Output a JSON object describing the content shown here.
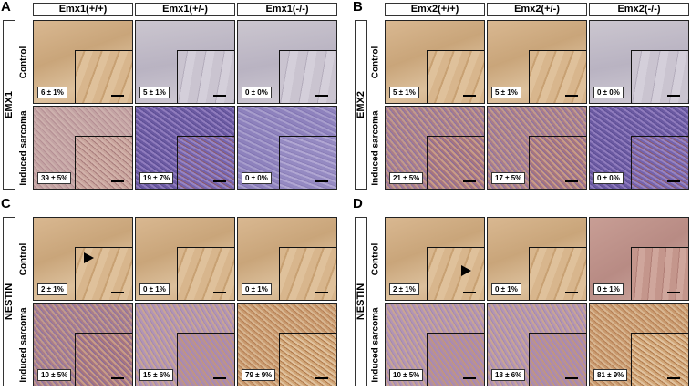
{
  "panels": {
    "A": {
      "label": "A",
      "marker": "EMX1",
      "columns": [
        "Emx1(+/+)",
        "Emx1(+/-)",
        "Emx1(-/-)"
      ],
      "rows": [
        "Control",
        "Induced sarcoma"
      ],
      "cells": [
        [
          "6 ± 1%",
          "5 ± 1%",
          "0 ± 0%"
        ],
        [
          "39 ± 5%",
          "19 ± 7%",
          "0 ± 0%"
        ]
      ]
    },
    "B": {
      "label": "B",
      "marker": "EMX2",
      "columns": [
        "Emx2(+/+)",
        "Emx2(+/-)",
        "Emx2(-/-)"
      ],
      "rows": [
        "Control",
        "Induced sarcoma"
      ],
      "cells": [
        [
          "5 ± 1%",
          "5 ± 1%",
          "0 ± 0%"
        ],
        [
          "21 ± 5%",
          "17 ± 5%",
          "0 ± 0%"
        ]
      ]
    },
    "C": {
      "label": "C",
      "marker": "NESTIN",
      "rows": [
        "Control",
        "Induced sarcoma"
      ],
      "cells": [
        [
          "2 ± 1%",
          "0 ± 1%",
          "0 ± 1%"
        ],
        [
          "10 ± 5%",
          "15 ± 6%",
          "79 ± 9%"
        ]
      ]
    },
    "D": {
      "label": "D",
      "marker": "NESTIN",
      "rows": [
        "Control",
        "Induced sarcoma"
      ],
      "cells": [
        [
          "2 ± 1%",
          "0 ± 1%",
          "0 ± 1%"
        ],
        [
          "10 ± 5%",
          "18 ± 6%",
          "81 ± 9%"
        ]
      ]
    }
  },
  "icons": [
    "arrowhead-icon",
    "scale-bar-icon"
  ]
}
